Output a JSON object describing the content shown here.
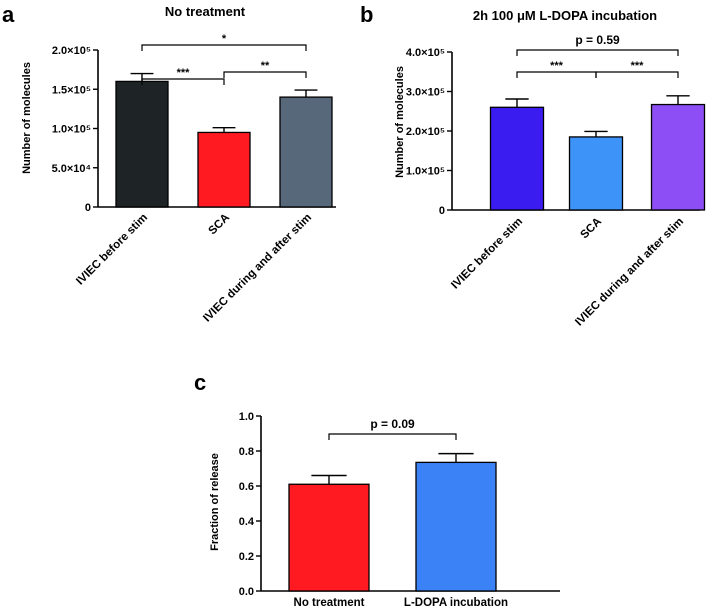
{
  "figure": {
    "panel_labels": [
      "a",
      "b",
      "c"
    ]
  },
  "chart_data": [
    {
      "id": "a",
      "type": "bar",
      "title": "No treatment",
      "ylabel": "Number of molecules",
      "xlabel": "",
      "categories": [
        "IVIEC before stim",
        "SCA",
        "IVIEC during and after stim"
      ],
      "values": [
        160000,
        95000,
        140000
      ],
      "errors": [
        10000,
        6000,
        9000
      ],
      "colors": [
        "#1e2326",
        "#ff1a22",
        "#56687a"
      ],
      "ylim": [
        0,
        200000
      ],
      "ticks": [
        0,
        50000,
        100000,
        150000,
        200000
      ],
      "tick_labels": [
        "0",
        "5.0×10⁴",
        "1.0×10⁵",
        "1.5×10⁵",
        "2.0×10⁵"
      ],
      "label_rotation": -45,
      "comparisons": [
        {
          "from": 0,
          "to": 1,
          "label": "***",
          "level": 1
        },
        {
          "from": 1,
          "to": 2,
          "label": "**",
          "level": 0
        },
        {
          "from": 0,
          "to": 2,
          "label": "*",
          "level": 2
        }
      ]
    },
    {
      "id": "b",
      "type": "bar",
      "title": "2h 100 μM L-DOPA incubation",
      "ylabel": "Number of molecules",
      "xlabel": "",
      "categories": [
        "IVIEC before stim",
        "SCA",
        "IVIEC during and after stim"
      ],
      "values": [
        260000,
        185000,
        267000
      ],
      "errors": [
        21000,
        14000,
        22000
      ],
      "colors": [
        "#3a1cf0",
        "#3d93f7",
        "#8d4ff5"
      ],
      "ylim": [
        0,
        400000
      ],
      "ticks": [
        0,
        100000,
        200000,
        300000,
        400000
      ],
      "tick_labels": [
        "0",
        "1.0×10⁵",
        "2.0×10⁵",
        "3.0×10⁵",
        "4.0×10⁵"
      ],
      "label_rotation": -45,
      "comparisons": [
        {
          "from": 0,
          "to": 1,
          "label": "***",
          "level": 1
        },
        {
          "from": 1,
          "to": 2,
          "label": "***",
          "level": 1
        },
        {
          "from": 0,
          "to": 2,
          "label": "p = 0.59",
          "level": 2
        }
      ]
    },
    {
      "id": "c",
      "type": "bar",
      "title": "",
      "ylabel": "Fraction of release",
      "xlabel": "",
      "categories": [
        "No treatment",
        "L-DOPA incubation"
      ],
      "values": [
        0.61,
        0.735
      ],
      "errors": [
        0.05,
        0.05
      ],
      "colors": [
        "#ff1a22",
        "#3b82f6"
      ],
      "ylim": [
        0,
        1.0
      ],
      "ticks": [
        0,
        0.2,
        0.4,
        0.6,
        0.8,
        1.0
      ],
      "tick_labels": [
        "0.0",
        "0.2",
        "0.4",
        "0.6",
        "0.8",
        "1.0"
      ],
      "label_rotation": 0,
      "comparisons": [
        {
          "from": 0,
          "to": 1,
          "label": "p = 0.09",
          "level": 2
        }
      ]
    }
  ]
}
